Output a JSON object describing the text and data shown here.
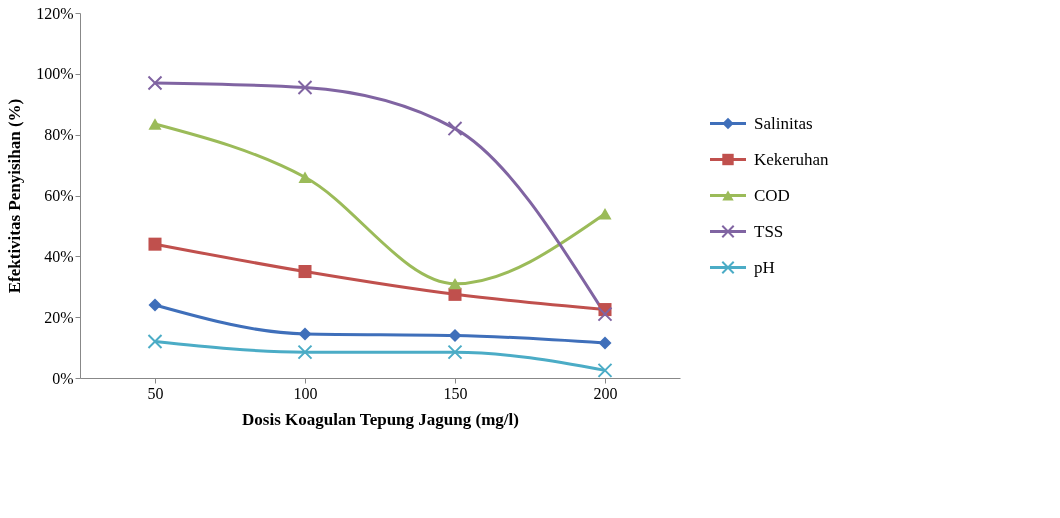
{
  "chart_data": {
    "type": "line",
    "xlabel": "Dosis Koagulan Tepung Jagung (mg/l)",
    "ylabel": "Efektivitas Penyisihan (%)",
    "categories": [
      "50",
      "100",
      "150",
      "200"
    ],
    "series": [
      {
        "name": "Salinitas",
        "color": "#3f6fba",
        "marker": "diamond",
        "values": [
          24,
          14.5,
          14,
          11.5
        ]
      },
      {
        "name": "Kekeruhan",
        "color": "#c0504d",
        "marker": "square",
        "values": [
          44,
          35,
          27.5,
          22.5
        ]
      },
      {
        "name": "COD",
        "color": "#9bbb59",
        "marker": "triangle",
        "values": [
          83.5,
          66,
          31,
          54
        ]
      },
      {
        "name": "TSS",
        "color": "#8064a2",
        "marker": "cross",
        "values": [
          97,
          95.5,
          82,
          21
        ]
      },
      {
        "name": "pH",
        "color": "#4bacc6",
        "marker": "cross",
        "values": [
          12,
          8.5,
          8.5,
          2.5
        ]
      }
    ],
    "ylim": [
      0,
      120
    ],
    "yticks": [
      {
        "value": 0,
        "label": "0%"
      },
      {
        "value": 20,
        "label": "20%"
      },
      {
        "value": 40,
        "label": "40%"
      },
      {
        "value": 60,
        "label": "60%"
      },
      {
        "value": 80,
        "label": "80%"
      },
      {
        "value": 100,
        "label": "100%"
      },
      {
        "value": 120,
        "label": "120%"
      }
    ],
    "grid": false,
    "legend": "right",
    "line_style": "solid"
  }
}
